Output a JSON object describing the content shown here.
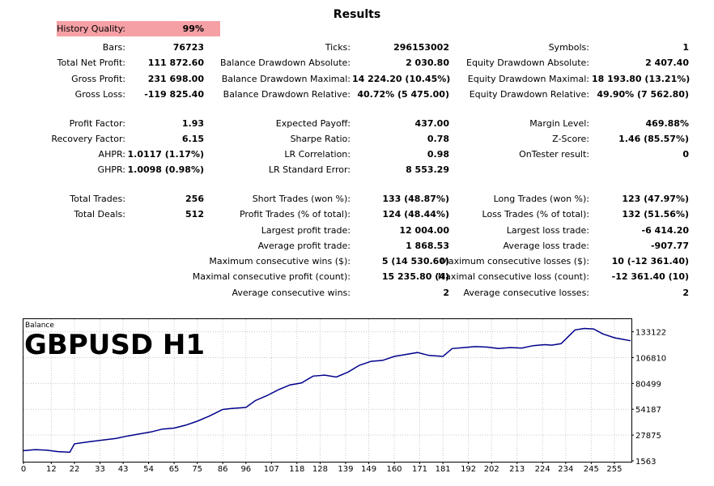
{
  "report": {
    "title": "Results",
    "history_quality": {
      "label": "History Quality:",
      "value": "99%"
    },
    "rows": [
      {
        "y": 59,
        "cells": [
          {
            "label": "Bars:",
            "value": "76723"
          },
          {
            "label": "Ticks:",
            "value": "296153002"
          },
          {
            "label": "Symbols:",
            "value": "1"
          }
        ]
      },
      {
        "y": 78,
        "cells": [
          {
            "label": "Total Net Profit:",
            "value": "111 872.60"
          },
          {
            "label": "Balance Drawdown Absolute:",
            "value": "2 030.80"
          },
          {
            "label": "Equity Drawdown Absolute:",
            "value": "2 407.40"
          }
        ]
      },
      {
        "y": 98,
        "cells": [
          {
            "label": "Gross Profit:",
            "value": "231 698.00"
          },
          {
            "label": "Balance Drawdown Maximal:",
            "value": "14 224.20 (10.45%)"
          },
          {
            "label": "Equity Drawdown Maximal:",
            "value": "18 193.80 (13.21%)"
          }
        ]
      },
      {
        "y": 117,
        "cells": [
          {
            "label": "Gross Loss:",
            "value": "-119 825.40"
          },
          {
            "label": "Balance Drawdown Relative:",
            "value": "40.72% (5 475.00)"
          },
          {
            "label": "Equity Drawdown Relative:",
            "value": "49.90% (7 562.80)"
          }
        ]
      },
      {
        "y": 153,
        "cells": [
          {
            "label": "Profit Factor:",
            "value": "1.93"
          },
          {
            "label": "Expected Payoff:",
            "value": "437.00"
          },
          {
            "label": "Margin Level:",
            "value": "469.88%"
          }
        ]
      },
      {
        "y": 172,
        "cells": [
          {
            "label": "Recovery Factor:",
            "value": "6.15"
          },
          {
            "label": "Sharpe Ratio:",
            "value": "0.78"
          },
          {
            "label": "Z-Score:",
            "value": "1.46 (85.57%)"
          }
        ]
      },
      {
        "y": 191,
        "cells": [
          {
            "label": "AHPR:",
            "value": "1.0117 (1.17%)"
          },
          {
            "label": "LR Correlation:",
            "value": "0.98"
          },
          {
            "label": "OnTester result:",
            "value": "0"
          }
        ]
      },
      {
        "y": 210,
        "cells": [
          {
            "label": "GHPR:",
            "value": "1.0098 (0.98%)"
          },
          {
            "label": "LR Standard Error:",
            "value": "8 553.29"
          },
          {
            "label": "",
            "value": ""
          }
        ]
      },
      {
        "y": 246,
        "cells": [
          {
            "label": "Total Trades:",
            "value": "256"
          },
          {
            "label": "Short Trades (won %):",
            "value": "133 (48.87%)"
          },
          {
            "label": "Long Trades (won %):",
            "value": "123 (47.97%)"
          }
        ]
      },
      {
        "y": 265,
        "cells": [
          {
            "label": "Total Deals:",
            "value": "512"
          },
          {
            "label": "Profit Trades (% of total):",
            "value": "124 (48.44%)"
          },
          {
            "label": "Loss Trades (% of total):",
            "value": "132 (51.56%)"
          }
        ]
      },
      {
        "y": 285,
        "cells": [
          {
            "label": "",
            "value": ""
          },
          {
            "label": "Largest profit trade:",
            "value": "12 004.00"
          },
          {
            "label": "Largest loss trade:",
            "value": "-6 414.20"
          }
        ]
      },
      {
        "y": 304,
        "cells": [
          {
            "label": "",
            "value": ""
          },
          {
            "label": "Average profit trade:",
            "value": "1 868.53"
          },
          {
            "label": "Average loss trade:",
            "value": "-907.77"
          }
        ]
      },
      {
        "y": 323,
        "cells": [
          {
            "label": "",
            "value": ""
          },
          {
            "label": "Maximum consecutive wins ($):",
            "value": "5 (14 530.60)"
          },
          {
            "label": "Maximum consecutive losses ($):",
            "value": "10 (-12 361.40)"
          }
        ]
      },
      {
        "y": 342,
        "cells": [
          {
            "label": "",
            "value": ""
          },
          {
            "label": "Maximal consecutive profit (count):",
            "value": "15 235.80 (4)"
          },
          {
            "label": "Maximal consecutive loss (count):",
            "value": "-12 361.40 (10)"
          }
        ]
      },
      {
        "y": 362,
        "cells": [
          {
            "label": "",
            "value": ""
          },
          {
            "label": "Average consecutive wins:",
            "value": "2"
          },
          {
            "label": "Average consecutive losses:",
            "value": "2"
          }
        ]
      }
    ]
  },
  "chart_data": {
    "type": "line",
    "title": "GBPUSD H1",
    "subtitle": "Balance",
    "xlim": [
      0,
      262
    ],
    "ylim": [
      1563,
      146000
    ],
    "x_ticks": [
      0,
      12,
      22,
      33,
      43,
      54,
      65,
      75,
      86,
      96,
      107,
      118,
      128,
      139,
      149,
      160,
      171,
      181,
      192,
      202,
      213,
      224,
      234,
      245,
      255
    ],
    "y_ticks": [
      1563,
      27875,
      54187,
      80499,
      106810,
      133122
    ],
    "line_color": "#00008b",
    "grid": true,
    "series": [
      {
        "x": [
          0,
          5,
          10,
          15,
          20,
          22,
          28,
          35,
          40,
          45,
          50,
          55,
          60,
          65,
          70,
          75,
          80,
          86,
          90,
          96,
          100,
          105,
          110,
          115,
          120,
          125,
          130,
          135,
          140,
          145,
          150,
          155,
          160,
          165,
          170,
          175,
          178,
          181,
          185,
          190,
          195,
          200,
          205,
          210,
          215,
          220,
          225,
          228,
          232,
          235,
          238,
          242,
          246,
          250,
          255,
          262
        ],
        "y": [
          12000,
          13000,
          12500,
          11000,
          10500,
          19000,
          21000,
          23000,
          24500,
          27000,
          29000,
          31000,
          34000,
          35000,
          38000,
          42000,
          47000,
          54000,
          55000,
          56000,
          63000,
          68000,
          74000,
          79000,
          81000,
          88000,
          89000,
          87000,
          92000,
          99000,
          103000,
          104000,
          108000,
          110000,
          112000,
          109000,
          108500,
          108000,
          116000,
          117000,
          118000,
          117500,
          116000,
          117000,
          116500,
          119000,
          120000,
          119500,
          121000,
          128000,
          135000,
          136500,
          136000,
          131000,
          127000,
          124000
        ]
      }
    ]
  }
}
